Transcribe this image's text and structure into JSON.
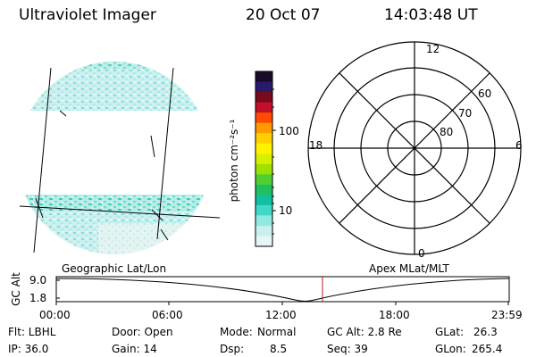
{
  "header": {
    "instrument": "Ultraviolet Imager",
    "date": "20 Oct 07",
    "time": "14:03:48 UT"
  },
  "colorbar": {
    "label": "photon cm⁻²s⁻¹",
    "ticks": [
      "100",
      "10"
    ],
    "colors": [
      "#1a0a2a",
      "#2a1a6a",
      "#7a0a1a",
      "#c0102a",
      "#ff4a00",
      "#ff9a00",
      "#ffd000",
      "#fff200",
      "#d8f000",
      "#9ee000",
      "#50d030",
      "#20c060",
      "#10c0a0",
      "#40d8c8",
      "#90e8e0",
      "#c8f0ec",
      "#e6f6f6"
    ]
  },
  "polar_plot": {
    "mlt_labels": {
      "top": "12",
      "right": "6",
      "bottom": "0",
      "left": "18"
    },
    "lat_labels": [
      "60",
      "70",
      "80"
    ]
  },
  "altitude_plot": {
    "ylabel": "GC Alt",
    "yticks": [
      "9.0",
      "1.8"
    ],
    "left_title": "Geographic Lat/Lon",
    "right_title": "Apex MLat/MLT",
    "xticks": [
      "00:00",
      "06:00",
      "12:00",
      "18:00",
      "23:59"
    ]
  },
  "status": {
    "flt": "Flt: LBHL",
    "ip": "IP: 36.0",
    "door": "Door: Open",
    "gain": "Gain: 14",
    "mode_label": "Mode:",
    "mode_value": "Normal",
    "dsp_label": "Dsp:",
    "dsp_value": "8.5",
    "gcalt": "GC Alt: 2.8 Re",
    "seq": "Seq: 39",
    "glat_label": "GLat:",
    "glat_value": "26.3",
    "glon_label": "GLon:",
    "glon_value": "265.4"
  }
}
